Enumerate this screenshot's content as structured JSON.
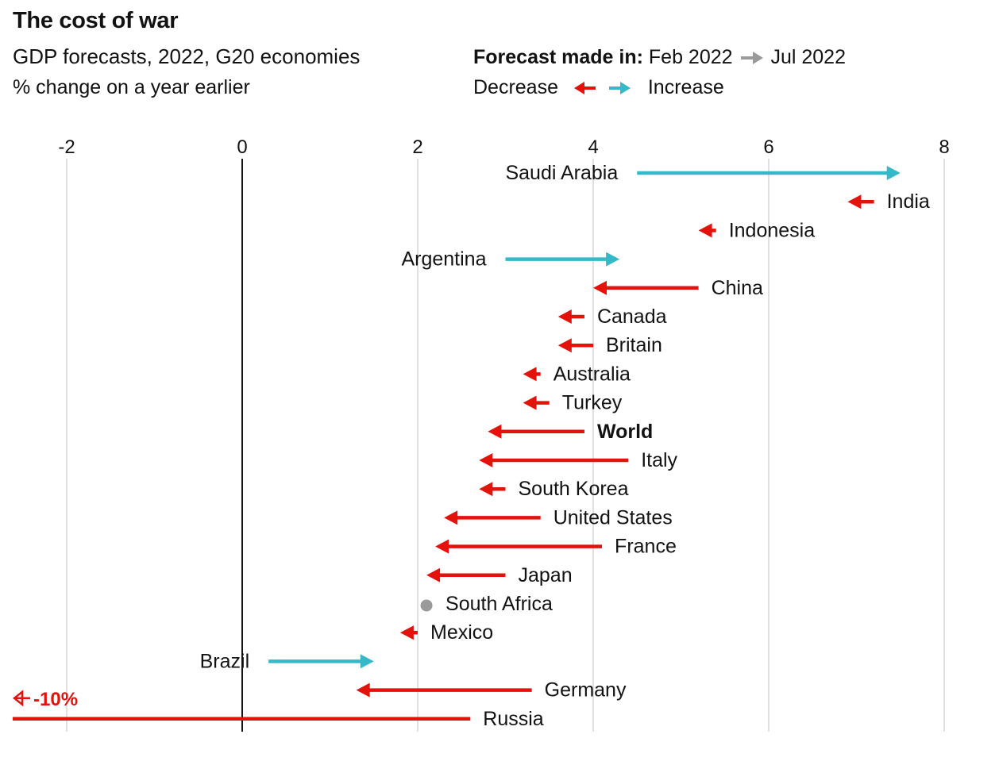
{
  "chart_data": {
    "type": "arrow",
    "title": "The cost of war",
    "subtitle": "GDP forecasts, 2022, G20 economies",
    "unit_label": "% change on a year earlier",
    "legend": {
      "forecast_label": "Forecast made in:",
      "from": "Feb 2022",
      "to": "Jul 2022",
      "decrease": "Decrease",
      "increase": "Increase"
    },
    "x_axis": {
      "ticks": [
        -2,
        0,
        2,
        4,
        6,
        8
      ],
      "range": [
        -2.6,
        8.4
      ]
    },
    "colors": {
      "decrease": "#e3120b",
      "increase": "#35b8c8",
      "unchanged": "#9a9a9a",
      "grid": "#d9d9d9",
      "zero": "#121212"
    },
    "series": [
      {
        "name": "Saudi Arabia",
        "from": 4.5,
        "to": 7.5
      },
      {
        "name": "India",
        "from": 7.2,
        "to": 6.9
      },
      {
        "name": "Indonesia",
        "from": 5.4,
        "to": 5.2
      },
      {
        "name": "Argentina",
        "from": 3.0,
        "to": 4.3
      },
      {
        "name": "China",
        "from": 5.2,
        "to": 4.0
      },
      {
        "name": "Canada",
        "from": 3.9,
        "to": 3.6
      },
      {
        "name": "Britain",
        "from": 4.0,
        "to": 3.6
      },
      {
        "name": "Australia",
        "from": 3.4,
        "to": 3.2
      },
      {
        "name": "Turkey",
        "from": 3.5,
        "to": 3.2
      },
      {
        "name": "World",
        "from": 3.9,
        "to": 2.8,
        "bold": true
      },
      {
        "name": "Italy",
        "from": 4.4,
        "to": 2.7
      },
      {
        "name": "South Korea",
        "from": 3.0,
        "to": 2.7
      },
      {
        "name": "United States",
        "from": 3.4,
        "to": 2.3
      },
      {
        "name": "France",
        "from": 4.1,
        "to": 2.2
      },
      {
        "name": "Japan",
        "from": 3.0,
        "to": 2.1
      },
      {
        "name": "South Africa",
        "from": 2.1,
        "to": 2.1
      },
      {
        "name": "Mexico",
        "from": 2.0,
        "to": 1.8
      },
      {
        "name": "Brazil",
        "from": 0.3,
        "to": 1.5
      },
      {
        "name": "Germany",
        "from": 3.3,
        "to": 1.3
      },
      {
        "name": "Russia",
        "from": 2.6,
        "to": -10.0,
        "offscale_label": "-10%"
      }
    ]
  }
}
